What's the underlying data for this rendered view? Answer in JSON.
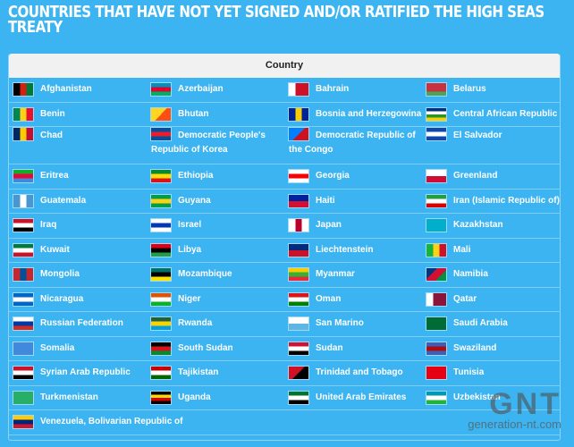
{
  "title": "COUNTRIES THAT HAVE NOT YET SIGNED AND/OR RATIFIED THE HIGH SEAS TREATY",
  "table": {
    "header": "Country",
    "rows": [
      [
        {
          "name": "Afghanistan",
          "flag": [
            "#000000",
            "#d32011",
            "#007a36"
          ],
          "dir": "v"
        },
        {
          "name": "Azerbaijan",
          "flag": [
            "#0092bc",
            "#e4002b",
            "#00af66"
          ],
          "dir": "h"
        },
        {
          "name": "Bahrain",
          "flag": [
            "#ffffff",
            "#ce1126",
            "#ce1126"
          ],
          "dir": "v"
        },
        {
          "name": "Belarus",
          "flag": [
            "#c8313e",
            "#c8313e",
            "#4aa657"
          ],
          "dir": "h"
        }
      ],
      [
        {
          "name": "Benin",
          "flag": [
            "#008751",
            "#fcd116",
            "#e8112d"
          ],
          "dir": "v"
        },
        {
          "name": "Bhutan",
          "flag": [
            "#ffd520",
            "#ff4e12"
          ],
          "dir": "d"
        },
        {
          "name": "Bosnia and Herzegowina",
          "flag": [
            "#002395",
            "#fecb00",
            "#002395"
          ],
          "dir": "v"
        },
        {
          "name": "Central African Republic",
          "flag": [
            "#003082",
            "#ffffff",
            "#289728",
            "#ffce00"
          ],
          "dir": "h"
        }
      ],
      [
        {
          "name": "Chad",
          "flag": [
            "#002664",
            "#fecb00",
            "#c60c30"
          ],
          "dir": "v"
        },
        {
          "name": "Democratic People's Republic of Korea",
          "flag": [
            "#024fa2",
            "#ed1c27",
            "#024fa2"
          ],
          "dir": "h"
        },
        {
          "name": "Democratic Republic of the Congo",
          "flag": [
            "#007fff",
            "#ce1021"
          ],
          "dir": "d"
        },
        {
          "name": "El Salvador",
          "flag": [
            "#0f47af",
            "#ffffff",
            "#0f47af"
          ],
          "dir": "h"
        }
      ],
      [
        {
          "name": "Eritrea",
          "flag": [
            "#12ad2b",
            "#ea0437",
            "#4189dd"
          ],
          "dir": "h"
        },
        {
          "name": "Ethiopia",
          "flag": [
            "#078930",
            "#fcdd09",
            "#da121a"
          ],
          "dir": "h"
        },
        {
          "name": "Georgia",
          "flag": [
            "#ffffff",
            "#ff0000",
            "#ffffff"
          ],
          "dir": "h"
        },
        {
          "name": "Greenland",
          "flag": [
            "#ffffff",
            "#d00c33"
          ],
          "dir": "h"
        }
      ],
      [
        {
          "name": "Guatemala",
          "flag": [
            "#4997d0",
            "#ffffff",
            "#4997d0"
          ],
          "dir": "v"
        },
        {
          "name": "Guyana",
          "flag": [
            "#009e49",
            "#fcd116",
            "#009e49"
          ],
          "dir": "h"
        },
        {
          "name": "Haiti",
          "flag": [
            "#00209f",
            "#d21034"
          ],
          "dir": "h"
        },
        {
          "name": "Iran (Islamic Republic of)",
          "flag": [
            "#239f40",
            "#ffffff",
            "#da0000"
          ],
          "dir": "h"
        }
      ],
      [
        {
          "name": "Iraq",
          "flag": [
            "#ce1126",
            "#ffffff",
            "#000000"
          ],
          "dir": "h"
        },
        {
          "name": "Israel",
          "flag": [
            "#ffffff",
            "#0038b8",
            "#ffffff"
          ],
          "dir": "h"
        },
        {
          "name": "Japan",
          "flag": [
            "#ffffff",
            "#bc002d",
            "#ffffff"
          ],
          "dir": "v"
        },
        {
          "name": "Kazakhstan",
          "flag": [
            "#00afca",
            "#00afca"
          ],
          "dir": "h"
        }
      ],
      [
        {
          "name": "Kuwait",
          "flag": [
            "#007a3d",
            "#ffffff",
            "#ce1126"
          ],
          "dir": "h"
        },
        {
          "name": "Libya",
          "flag": [
            "#e70013",
            "#000000",
            "#239e46"
          ],
          "dir": "h"
        },
        {
          "name": "Liechtenstein",
          "flag": [
            "#002b7f",
            "#ce1126"
          ],
          "dir": "h"
        },
        {
          "name": "Mali",
          "flag": [
            "#14b53a",
            "#fcd116",
            "#ce1126"
          ],
          "dir": "v"
        }
      ],
      [
        {
          "name": "Mongolia",
          "flag": [
            "#c4272f",
            "#015197",
            "#c4272f"
          ],
          "dir": "v"
        },
        {
          "name": "Mozambique",
          "flag": [
            "#007168",
            "#000000",
            "#fce100"
          ],
          "dir": "h"
        },
        {
          "name": "Myanmar",
          "flag": [
            "#fecb00",
            "#34b233",
            "#ea2839"
          ],
          "dir": "h"
        },
        {
          "name": "Namibia",
          "flag": [
            "#003580",
            "#d21034",
            "#009543"
          ],
          "dir": "d"
        }
      ],
      [
        {
          "name": "Nicaragua",
          "flag": [
            "#0067c6",
            "#ffffff",
            "#0067c6"
          ],
          "dir": "h"
        },
        {
          "name": "Niger",
          "flag": [
            "#e05206",
            "#ffffff",
            "#0db02b"
          ],
          "dir": "h"
        },
        {
          "name": "Oman",
          "flag": [
            "#db161b",
            "#ffffff",
            "#008000"
          ],
          "dir": "h"
        },
        {
          "name": "Qatar",
          "flag": [
            "#ffffff",
            "#8a1538",
            "#8a1538"
          ],
          "dir": "v"
        }
      ],
      [
        {
          "name": "Russian Federation",
          "flag": [
            "#ffffff",
            "#0039a6",
            "#d52b1e"
          ],
          "dir": "h"
        },
        {
          "name": "Rwanda",
          "flag": [
            "#20603d",
            "#fad201",
            "#00a1de"
          ],
          "dir": "h"
        },
        {
          "name": "San Marino",
          "flag": [
            "#ffffff",
            "#5eb6e4"
          ],
          "dir": "h"
        },
        {
          "name": "Saudi Arabia",
          "flag": [
            "#006c35",
            "#006c35"
          ],
          "dir": "h"
        }
      ],
      [
        {
          "name": "Somalia",
          "flag": [
            "#4189dd",
            "#4189dd"
          ],
          "dir": "h"
        },
        {
          "name": "South Sudan",
          "flag": [
            "#000000",
            "#da121a",
            "#078930"
          ],
          "dir": "h"
        },
        {
          "name": "Sudan",
          "flag": [
            "#d21034",
            "#ffffff",
            "#000000"
          ],
          "dir": "h"
        },
        {
          "name": "Swaziland",
          "flag": [
            "#3e5eb9",
            "#b10c0c",
            "#3e5eb9"
          ],
          "dir": "h"
        }
      ],
      [
        {
          "name": "Syrian Arab Republic",
          "flag": [
            "#ce1126",
            "#ffffff",
            "#000000"
          ],
          "dir": "h"
        },
        {
          "name": "Tajikistan",
          "flag": [
            "#cc0000",
            "#ffffff",
            "#006600"
          ],
          "dir": "h"
        },
        {
          "name": "Trinidad and Tobago",
          "flag": [
            "#ce1126",
            "#000000"
          ],
          "dir": "d"
        },
        {
          "name": "Tunisia",
          "flag": [
            "#e70013",
            "#e70013"
          ],
          "dir": "h"
        }
      ],
      [
        {
          "name": "Turkmenistan",
          "flag": [
            "#28ae66",
            "#28ae66"
          ],
          "dir": "h"
        },
        {
          "name": "Uganda",
          "flag": [
            "#000000",
            "#fcdc04",
            "#d90000",
            "#000000"
          ],
          "dir": "h"
        },
        {
          "name": "United Arab Emirates",
          "flag": [
            "#00732f",
            "#ffffff",
            "#000000"
          ],
          "dir": "h"
        },
        {
          "name": "Uzbekistan",
          "flag": [
            "#0099b5",
            "#ffffff",
            "#1eb53a"
          ],
          "dir": "h"
        }
      ],
      [
        {
          "name": "Venezuela, Bolivarian Republic of",
          "flag": [
            "#ffcc00",
            "#00247d",
            "#cf142b"
          ],
          "dir": "h"
        }
      ]
    ]
  },
  "watermark": {
    "logo": "GNT",
    "site": "generation-nt.com"
  }
}
